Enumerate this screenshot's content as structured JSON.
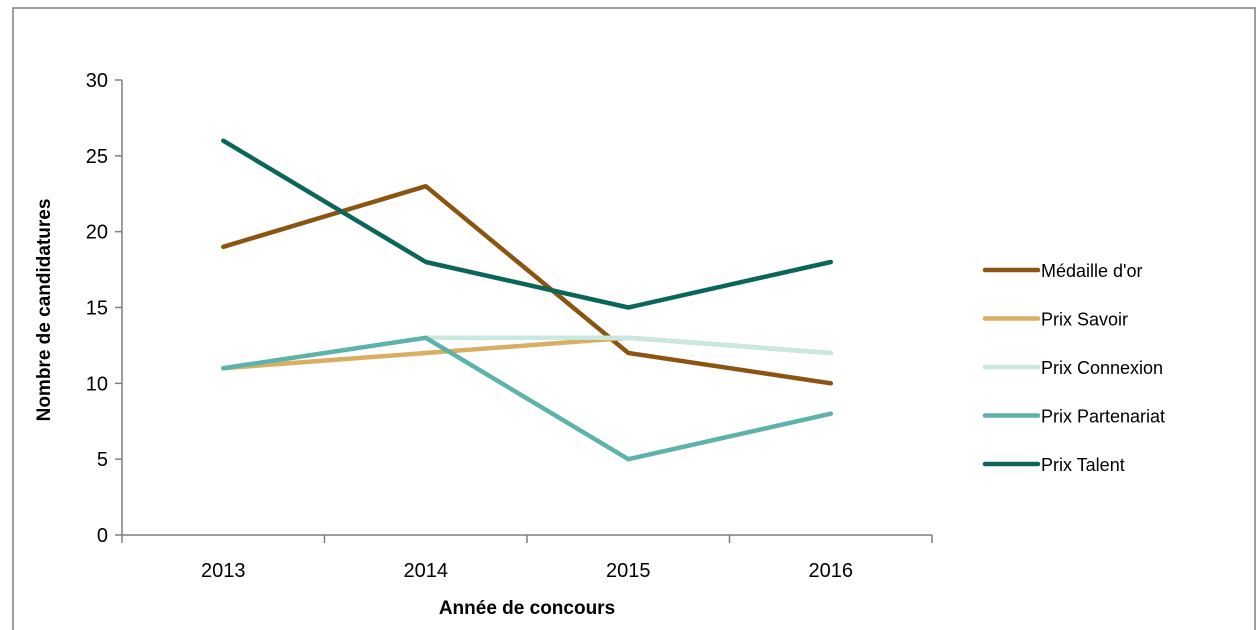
{
  "chart_data": {
    "type": "line",
    "title": "",
    "xlabel": "Année de concours",
    "ylabel": "Nombre de candidatures",
    "x": [
      "2013",
      "2014",
      "2015",
      "2016"
    ],
    "ylim": [
      0,
      30
    ],
    "yticks": [
      0,
      5,
      10,
      15,
      20,
      25,
      30
    ],
    "grid": false,
    "legend_position": "right",
    "series": [
      {
        "name": "Médaille d'or",
        "values": [
          19,
          23,
          12,
          10
        ],
        "color": "#8B5511"
      },
      {
        "name": "Prix Savoir",
        "values": [
          11,
          12,
          13,
          12
        ],
        "color": "#D9AE62"
      },
      {
        "name": "Prix Connexion",
        "values": [
          11,
          13,
          13,
          12
        ],
        "color": "#C9E8DF"
      },
      {
        "name": "Prix Partenariat",
        "values": [
          11,
          13,
          5,
          8
        ],
        "color": "#5DB3A9"
      },
      {
        "name": "Prix Talent",
        "values": [
          26,
          18,
          15,
          18
        ],
        "color": "#0B6659"
      }
    ]
  }
}
